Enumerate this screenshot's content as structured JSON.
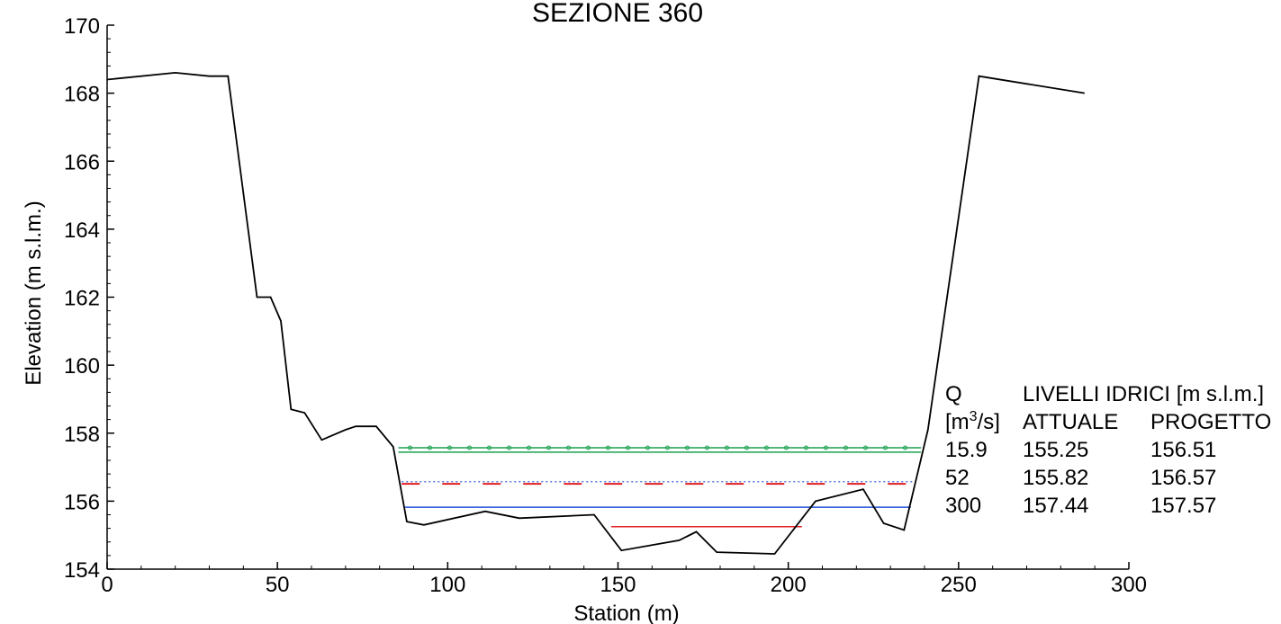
{
  "chart_data": {
    "type": "line",
    "title": "SEZIONE 360",
    "xlabel": "Station (m)",
    "ylabel": "Elevation (m s.l.m.)",
    "xlim": [
      0,
      300
    ],
    "ylim": [
      154,
      170
    ],
    "x_ticks": [
      0,
      50,
      100,
      150,
      200,
      250,
      300
    ],
    "y_ticks": [
      154,
      156,
      158,
      160,
      162,
      164,
      166,
      168,
      170
    ],
    "grid": false,
    "series": [
      {
        "points": [
          [
            0,
            168.4
          ],
          [
            20,
            168.6
          ],
          [
            30,
            168.5
          ],
          [
            35.5,
            168.5
          ],
          [
            44,
            162.0
          ],
          [
            48,
            162.0
          ],
          [
            51,
            161.3
          ],
          [
            54,
            158.7
          ],
          [
            58,
            158.6
          ],
          [
            63,
            157.8
          ],
          [
            70,
            158.1
          ],
          [
            73,
            158.2
          ],
          [
            79,
            158.2
          ],
          [
            84,
            157.6
          ],
          [
            88,
            155.4
          ],
          [
            93,
            155.3
          ],
          [
            111,
            155.7
          ],
          [
            121,
            155.5
          ],
          [
            143,
            155.6
          ],
          [
            151,
            154.55
          ],
          [
            168,
            154.85
          ],
          [
            173,
            155.1
          ],
          [
            179,
            154.5
          ],
          [
            196,
            154.45
          ],
          [
            208,
            156.0
          ],
          [
            222,
            156.35
          ],
          [
            228,
            155.35
          ],
          [
            234,
            155.15
          ],
          [
            241,
            158.1
          ],
          [
            256,
            168.5
          ],
          [
            287,
            168.0
          ]
        ],
        "color": "#000000"
      }
    ],
    "water_levels": [
      {
        "y": 155.25,
        "x": [
          148,
          204
        ],
        "color": "#e02020",
        "style": "solid"
      },
      {
        "y": 155.82,
        "x": [
          87.5,
          236
        ],
        "color": "#1f4fd8",
        "style": "solid"
      },
      {
        "y": 156.51,
        "x": [
          86.5,
          237
        ],
        "color": "#e02020",
        "style": "dashed"
      },
      {
        "y": 156.57,
        "x": [
          86.5,
          237
        ],
        "color": "#1f4fd8",
        "style": "dotted"
      },
      {
        "y": 157.44,
        "x": [
          85.5,
          239
        ],
        "color": "#1aa052",
        "style": "solid"
      },
      {
        "y": 157.57,
        "x": [
          85.5,
          239
        ],
        "color": "#1aa052",
        "style": "solid-markers"
      }
    ],
    "table": {
      "header_q": "Q",
      "header_levels": "LIVELLI IDRICI [m s.l.m.]",
      "unit_main": "[m",
      "unit_sup": "3",
      "unit_end": "/s]",
      "col_attuale": "ATTUALE",
      "col_progetto": "PROGETTO",
      "rows": [
        {
          "q": "15.9",
          "attuale": "155.25",
          "progetto": "156.51"
        },
        {
          "q": "52",
          "attuale": "155.82",
          "progetto": "156.57"
        },
        {
          "q": "300",
          "attuale": "157.44",
          "progetto": "157.57"
        }
      ]
    }
  }
}
